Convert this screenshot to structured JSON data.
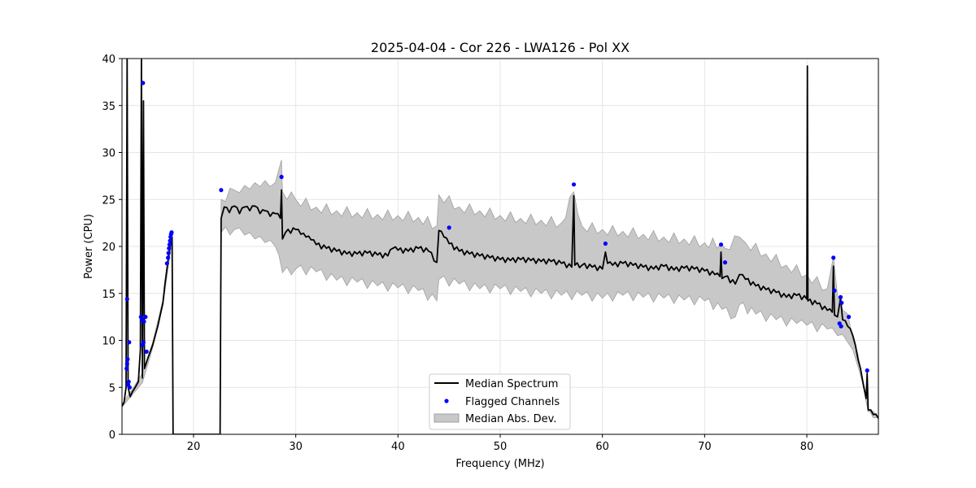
{
  "chart_data": {
    "type": "line",
    "title": "2025-04-04 - Cor 226 - LWA126 - Pol XX",
    "xlabel": "Frequency (MHz)",
    "ylabel": "Power (CPU)",
    "xlim": [
      13.0,
      87.0
    ],
    "ylim": [
      0,
      40
    ],
    "xticks": [
      20,
      30,
      40,
      50,
      60,
      70,
      80
    ],
    "yticks": [
      0,
      5,
      10,
      15,
      20,
      25,
      30,
      35,
      40
    ],
    "grid": true,
    "legend_position": "lower-center",
    "legend": [
      "Median Spectrum",
      "Flagged Channels",
      "Median Abs. Dev."
    ],
    "colors": {
      "median": "#000000",
      "flagged": "#0000ff",
      "mad_fill": "#c8c8c8",
      "mad_edge": "#a0a0a0"
    },
    "median": [
      [
        13.0,
        3.0
      ],
      [
        13.2,
        3.4
      ],
      [
        13.4,
        5.0
      ],
      [
        13.5,
        40.0
      ],
      [
        13.6,
        5.0
      ],
      [
        13.8,
        4.0
      ],
      [
        14.0,
        4.5
      ],
      [
        14.3,
        5.0
      ],
      [
        14.6,
        5.6
      ],
      [
        14.8,
        9.0
      ],
      [
        14.9,
        40.0
      ],
      [
        15.0,
        6.0
      ],
      [
        15.1,
        35.5
      ],
      [
        15.2,
        7.0
      ],
      [
        15.5,
        8.0
      ],
      [
        16.0,
        9.5
      ],
      [
        16.5,
        11.5
      ],
      [
        17.0,
        14.0
      ],
      [
        17.2,
        16.0
      ],
      [
        17.5,
        18.5
      ],
      [
        17.7,
        20.0
      ],
      [
        17.9,
        21.0
      ],
      [
        18.0,
        0.0
      ],
      [
        22.6,
        0.0
      ],
      [
        22.7,
        23.0
      ],
      [
        23.0,
        24.2
      ],
      [
        23.5,
        23.6
      ],
      [
        24.0,
        24.3
      ],
      [
        24.5,
        23.5
      ],
      [
        25.0,
        24.2
      ],
      [
        25.5,
        23.8
      ],
      [
        26.0,
        24.3
      ],
      [
        26.5,
        23.5
      ],
      [
        27.0,
        23.8
      ],
      [
        27.5,
        23.2
      ],
      [
        28.0,
        23.5
      ],
      [
        28.5,
        23.0
      ],
      [
        28.6,
        26.0
      ],
      [
        28.7,
        20.8
      ],
      [
        29.0,
        21.5
      ],
      [
        30.0,
        21.8
      ],
      [
        30.5,
        21.3
      ],
      [
        31.0,
        21.0
      ],
      [
        31.5,
        20.7
      ],
      [
        32.0,
        20.2
      ],
      [
        33.0,
        19.8
      ],
      [
        34.0,
        19.5
      ],
      [
        35.0,
        19.2
      ],
      [
        36.0,
        19.2
      ],
      [
        37.0,
        19.3
      ],
      [
        38.0,
        19.1
      ],
      [
        39.0,
        19.0
      ],
      [
        39.5,
        19.8
      ],
      [
        40.0,
        19.6
      ],
      [
        41.0,
        19.5
      ],
      [
        42.0,
        19.8
      ],
      [
        43.0,
        19.5
      ],
      [
        43.8,
        18.3
      ],
      [
        44.0,
        21.7
      ],
      [
        44.5,
        21.0
      ],
      [
        45.0,
        20.3
      ],
      [
        46.0,
        19.5
      ],
      [
        47.0,
        19.2
      ],
      [
        48.0,
        19.0
      ],
      [
        49.0,
        18.8
      ],
      [
        50.0,
        18.6
      ],
      [
        51.0,
        18.5
      ],
      [
        52.0,
        18.6
      ],
      [
        53.0,
        18.5
      ],
      [
        54.0,
        18.4
      ],
      [
        55.0,
        18.4
      ],
      [
        56.0,
        18.2
      ],
      [
        57.0,
        17.8
      ],
      [
        57.2,
        25.4
      ],
      [
        57.3,
        18.0
      ],
      [
        58.0,
        18.0
      ],
      [
        59.0,
        17.8
      ],
      [
        60.0,
        17.6
      ],
      [
        60.3,
        19.4
      ],
      [
        60.5,
        18.2
      ],
      [
        61.0,
        18.0
      ],
      [
        62.0,
        18.2
      ],
      [
        63.0,
        18.0
      ],
      [
        64.0,
        17.8
      ],
      [
        65.0,
        17.6
      ],
      [
        66.0,
        17.9
      ],
      [
        67.0,
        17.5
      ],
      [
        68.0,
        17.7
      ],
      [
        69.0,
        17.6
      ],
      [
        70.0,
        17.4
      ],
      [
        71.0,
        17.0
      ],
      [
        71.5,
        16.8
      ],
      [
        71.6,
        19.4
      ],
      [
        71.7,
        16.6
      ],
      [
        72.0,
        16.8
      ],
      [
        73.0,
        16.0
      ],
      [
        73.4,
        17.0
      ],
      [
        74.0,
        16.5
      ],
      [
        75.0,
        15.8
      ],
      [
        76.0,
        15.4
      ],
      [
        77.0,
        15.1
      ],
      [
        78.0,
        14.6
      ],
      [
        79.0,
        14.8
      ],
      [
        80.0,
        14.4
      ],
      [
        80.05,
        39.2
      ],
      [
        80.1,
        14.2
      ],
      [
        81.0,
        13.9
      ],
      [
        82.0,
        13.2
      ],
      [
        82.5,
        13.0
      ],
      [
        82.6,
        17.9
      ],
      [
        82.7,
        12.7
      ],
      [
        83.0,
        12.5
      ],
      [
        83.3,
        14.5
      ],
      [
        83.5,
        12.2
      ],
      [
        84.0,
        11.5
      ],
      [
        84.5,
        10.5
      ],
      [
        85.0,
        8.0
      ],
      [
        85.5,
        5.5
      ],
      [
        85.8,
        3.8
      ],
      [
        85.9,
        6.5
      ],
      [
        86.0,
        2.6
      ],
      [
        86.5,
        2.1
      ],
      [
        87.0,
        1.7
      ]
    ],
    "mad_upper": [
      [
        13.0,
        3.2
      ],
      [
        14.0,
        4.8
      ],
      [
        15.0,
        6.5
      ],
      [
        16.0,
        9.8
      ],
      [
        17.0,
        14.3
      ],
      [
        17.9,
        21.3
      ],
      [
        18.0,
        0.0
      ],
      [
        22.6,
        0.0
      ],
      [
        22.7,
        25.0
      ],
      [
        24.0,
        26.0
      ],
      [
        25.0,
        26.5
      ],
      [
        26.0,
        26.8
      ],
      [
        27.0,
        27.0
      ],
      [
        28.0,
        26.8
      ],
      [
        28.6,
        29.2
      ],
      [
        28.7,
        25.8
      ],
      [
        30.0,
        25.0
      ],
      [
        32.0,
        24.2
      ],
      [
        34.0,
        23.8
      ],
      [
        36.0,
        23.6
      ],
      [
        38.0,
        23.4
      ],
      [
        40.0,
        23.3
      ],
      [
        42.0,
        23.1
      ],
      [
        43.8,
        22.2
      ],
      [
        44.0,
        25.5
      ],
      [
        46.0,
        24.2
      ],
      [
        48.0,
        23.8
      ],
      [
        50.0,
        23.3
      ],
      [
        52.0,
        23.0
      ],
      [
        54.0,
        22.8
      ],
      [
        56.0,
        22.5
      ],
      [
        57.2,
        25.8
      ],
      [
        58.0,
        22.2
      ],
      [
        60.0,
        21.8
      ],
      [
        62.0,
        21.6
      ],
      [
        64.0,
        21.3
      ],
      [
        66.0,
        21.0
      ],
      [
        68.0,
        20.8
      ],
      [
        70.0,
        20.4
      ],
      [
        71.6,
        20.3
      ],
      [
        72.0,
        19.8
      ],
      [
        73.4,
        21.0
      ],
      [
        74.0,
        20.4
      ],
      [
        76.0,
        19.2
      ],
      [
        78.0,
        18.0
      ],
      [
        80.0,
        17.0
      ],
      [
        82.0,
        15.5
      ],
      [
        82.6,
        18.9
      ],
      [
        83.0,
        14.8
      ],
      [
        84.0,
        12.8
      ],
      [
        85.0,
        8.5
      ],
      [
        86.0,
        2.8
      ],
      [
        87.0,
        1.8
      ]
    ],
    "mad_lower": [
      [
        13.0,
        2.9
      ],
      [
        14.0,
        4.2
      ],
      [
        15.0,
        5.5
      ],
      [
        16.0,
        9.2
      ],
      [
        17.0,
        13.7
      ],
      [
        17.9,
        20.7
      ],
      [
        18.0,
        0.0
      ],
      [
        22.6,
        0.0
      ],
      [
        22.7,
        21.5
      ],
      [
        24.0,
        21.8
      ],
      [
        25.0,
        21.2
      ],
      [
        26.0,
        20.8
      ],
      [
        27.0,
        20.4
      ],
      [
        28.0,
        20.0
      ],
      [
        28.7,
        17.2
      ],
      [
        30.0,
        17.6
      ],
      [
        32.0,
        17.3
      ],
      [
        34.0,
        16.4
      ],
      [
        36.0,
        16.2
      ],
      [
        38.0,
        15.8
      ],
      [
        40.0,
        15.6
      ],
      [
        42.0,
        15.3
      ],
      [
        43.8,
        14.2
      ],
      [
        44.0,
        16.5
      ],
      [
        46.0,
        16.0
      ],
      [
        48.0,
        15.5
      ],
      [
        50.0,
        15.5
      ],
      [
        52.0,
        15.2
      ],
      [
        54.0,
        15.0
      ],
      [
        56.0,
        14.8
      ],
      [
        58.0,
        14.8
      ],
      [
        60.0,
        14.5
      ],
      [
        62.0,
        14.8
      ],
      [
        64.0,
        14.6
      ],
      [
        66.0,
        14.5
      ],
      [
        68.0,
        14.3
      ],
      [
        70.0,
        14.2
      ],
      [
        71.7,
        13.3
      ],
      [
        73.0,
        12.5
      ],
      [
        73.4,
        13.8
      ],
      [
        75.0,
        12.8
      ],
      [
        77.0,
        12.2
      ],
      [
        79.0,
        11.8
      ],
      [
        80.0,
        11.6
      ],
      [
        82.0,
        11.2
      ],
      [
        83.0,
        10.5
      ],
      [
        84.0,
        9.8
      ],
      [
        85.0,
        7.2
      ],
      [
        86.0,
        2.4
      ],
      [
        87.0,
        1.6
      ]
    ],
    "flagged": [
      [
        13.45,
        7.0
      ],
      [
        13.5,
        7.5
      ],
      [
        13.55,
        8.0
      ],
      [
        13.5,
        14.4
      ],
      [
        13.6,
        5.3
      ],
      [
        13.65,
        5.6
      ],
      [
        13.7,
        9.8
      ],
      [
        13.75,
        5.0
      ],
      [
        14.85,
        12.5
      ],
      [
        14.95,
        12.2
      ],
      [
        15.05,
        37.4
      ],
      [
        15.0,
        9.5
      ],
      [
        15.1,
        9.8
      ],
      [
        15.15,
        12.0
      ],
      [
        15.3,
        12.5
      ],
      [
        15.4,
        8.8
      ],
      [
        17.4,
        18.2
      ],
      [
        17.5,
        18.8
      ],
      [
        17.55,
        19.3
      ],
      [
        17.6,
        19.8
      ],
      [
        17.65,
        20.2
      ],
      [
        17.7,
        20.6
      ],
      [
        17.75,
        21.0
      ],
      [
        17.8,
        21.3
      ],
      [
        17.85,
        21.5
      ],
      [
        22.7,
        26.0
      ],
      [
        28.6,
        27.4
      ],
      [
        45.0,
        22.0
      ],
      [
        57.2,
        26.6
      ],
      [
        60.3,
        20.3
      ],
      [
        71.6,
        20.2
      ],
      [
        72.0,
        18.3
      ],
      [
        82.6,
        18.8
      ],
      [
        82.7,
        15.3
      ],
      [
        83.2,
        11.8
      ],
      [
        83.3,
        14.6
      ],
      [
        83.35,
        11.5
      ],
      [
        83.4,
        14.0
      ],
      [
        84.1,
        12.5
      ],
      [
        85.9,
        6.8
      ]
    ]
  }
}
